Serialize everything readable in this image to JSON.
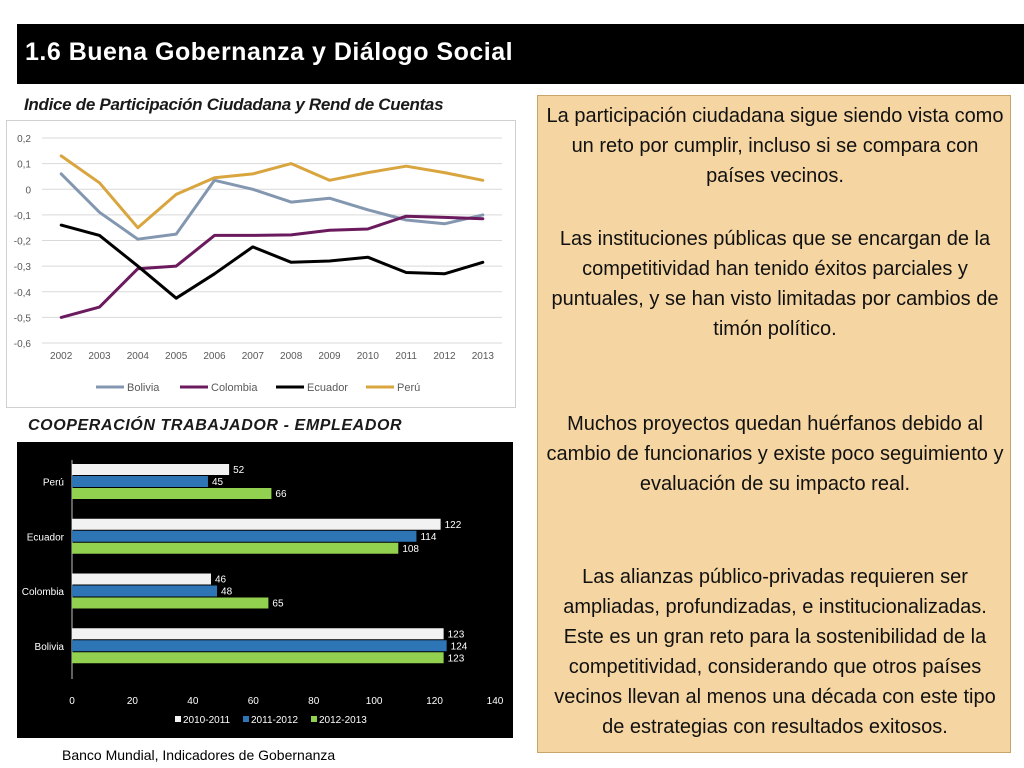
{
  "header": {
    "title": "1.6 Buena Gobernanza y Diálogo Social"
  },
  "line_chart_title": "Indice de Participación Ciudadana y Rend de Cuentas",
  "bar_chart_title": "COOPERACIÓN TRABAJADOR - EMPLEADOR",
  "source": "Banco Mundial, Indicadores de Gobernanza",
  "textbox": {
    "p1": "La participación ciudadana sigue siendo vista como un reto por cumplir, incluso si se compara con países vecinos.",
    "p2": "Las instituciones públicas que se encargan de la competitividad han tenido éxitos parciales y puntuales, y se han visto limitadas por cambios de timón político.",
    "p3": "Muchos proyectos quedan huérfanos debido al cambio de funcionarios y existe poco seguimiento y evaluación de su impacto real.",
    "p4": "Las alianzas público-privadas requieren ser ampliadas, profundizadas, e institucionalizadas. Este es un gran reto para la sostenibilidad de la competitividad, considerando que otros países vecinos llevan al menos una década con este tipo de estrategias con resultados exitosos."
  },
  "chart_data": [
    {
      "type": "line",
      "x": [
        2002,
        2003,
        2004,
        2005,
        2006,
        2007,
        2008,
        2009,
        2010,
        2011,
        2012,
        2013
      ],
      "ylim": [
        -0.6,
        0.2
      ],
      "yticks": [
        0.2,
        0.1,
        0,
        -0.1,
        -0.2,
        -0.3,
        -0.4,
        -0.5,
        -0.6
      ],
      "ytick_labels": [
        "0,2",
        "0,1",
        "0",
        "-0,1",
        "-0,2",
        "-0,3",
        "-0,4",
        "-0,5",
        "-0,6"
      ],
      "grid": true,
      "legend": "bottom",
      "series": [
        {
          "name": "Bolivia",
          "color": "#8497b0",
          "values": [
            0.06,
            -0.09,
            -0.195,
            -0.175,
            0.035,
            0.0,
            -0.05,
            -0.035,
            -0.08,
            -0.12,
            -0.135,
            -0.1
          ]
        },
        {
          "name": "Colombia",
          "color": "#6b1a5e",
          "values": [
            -0.5,
            -0.46,
            -0.31,
            -0.3,
            -0.18,
            -0.18,
            -0.178,
            -0.16,
            -0.155,
            -0.105,
            -0.11,
            -0.115
          ]
        },
        {
          "name": "Ecuador",
          "color": "#000000",
          "values": [
            -0.14,
            -0.18,
            -0.3,
            -0.425,
            -0.33,
            -0.225,
            -0.285,
            -0.28,
            -0.265,
            -0.325,
            -0.33,
            -0.285
          ]
        },
        {
          "name": "Perú",
          "color": "#d9a53f",
          "values": [
            0.13,
            0.025,
            -0.15,
            -0.02,
            0.045,
            0.06,
            0.1,
            0.035,
            0.065,
            0.09,
            0.065,
            0.035
          ]
        }
      ]
    },
    {
      "type": "bar",
      "orientation": "horizontal",
      "categories": [
        "Perú",
        "Ecuador",
        "Colombia",
        "Bolivia"
      ],
      "xlim": [
        0,
        140
      ],
      "xticks": [
        0,
        20,
        40,
        60,
        80,
        100,
        120,
        140
      ],
      "legend": "bottom",
      "series": [
        {
          "name": "2010-2011",
          "color": "#f2f2f2",
          "values": [
            52,
            122,
            46,
            123
          ]
        },
        {
          "name": "2011-2012",
          "color": "#2e75b6",
          "values": [
            45,
            114,
            48,
            124
          ]
        },
        {
          "name": "2012-2013",
          "color": "#92d050",
          "values": [
            66,
            108,
            65,
            123
          ]
        }
      ]
    }
  ]
}
